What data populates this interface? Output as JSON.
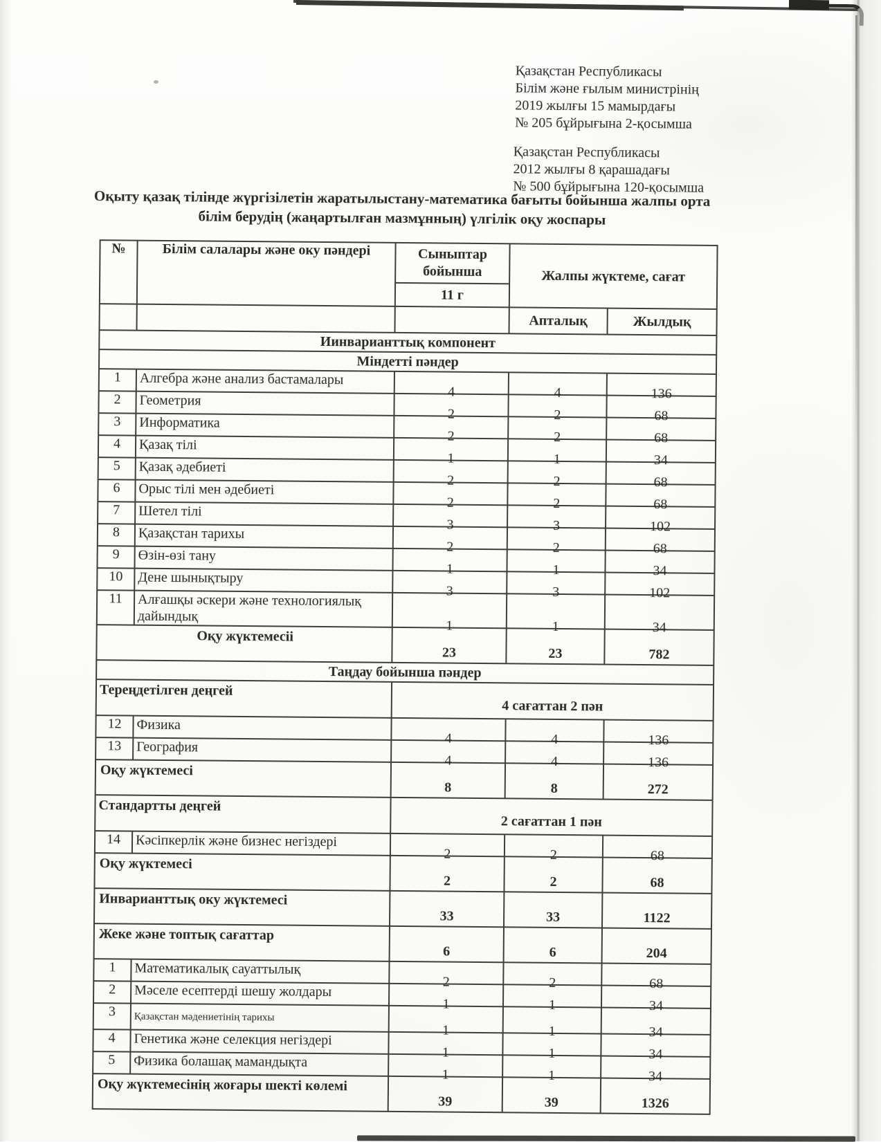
{
  "document": {
    "stamps": [
      {
        "lines": [
          "Қазақстан Республикасы",
          "Білім және ғылым министрінің",
          "2019 жылғы 15 мамырдағы",
          "№ 205 бұйрығына 2-қосымша"
        ]
      },
      {
        "lines": [
          "Қазақстан Республикасы",
          "2012 жылғы 8 қарашадағы",
          "№ 500 бұйрығына 120-қосымша"
        ]
      }
    ],
    "title_line": "Оқыту қазақ тілінде жүргізілетін жаратылыстану-математика бағыты бойынша жалпы орта білім берудің (жаңартылған мазмұнның) үлгілік оқу жоспары"
  },
  "table": {
    "headers": {
      "num": "№",
      "subject": "Білім салалары және оку пәндері",
      "classes": "Сыныптар бойынша",
      "class_label": "11 г",
      "load": "Жалпы жүктеме, сағат",
      "weekly": "Апталық",
      "yearly": "Жылдық"
    },
    "rows": [
      {
        "type": "section",
        "label": "Иинварианттық  компонент"
      },
      {
        "type": "section",
        "label": "Міндетті пәндер"
      },
      {
        "type": "subject",
        "num": "1",
        "label": "Алгебра және анализ бастамалары",
        "hours": "4",
        "weekly": "4",
        "yearly": "136"
      },
      {
        "type": "subject",
        "num": "2",
        "label": "Геометрия",
        "hours": "2",
        "weekly": "2",
        "yearly": "68"
      },
      {
        "type": "subject",
        "num": "3",
        "label": "Информатика",
        "hours": "2",
        "weekly": "2",
        "yearly": "68"
      },
      {
        "type": "subject",
        "num": "4",
        "label": "Қазақ тілі",
        "hours": "1",
        "weekly": "1",
        "yearly": "34"
      },
      {
        "type": "subject",
        "num": "5",
        "label": "Қазақ әдебиеті",
        "hours": "2",
        "weekly": "2",
        "yearly": "68"
      },
      {
        "type": "subject",
        "num": "6",
        "label": "Орыс тілі мен әдебиеті",
        "hours": "2",
        "weekly": "2",
        "yearly": "68"
      },
      {
        "type": "subject",
        "num": "7",
        "label": "Шетел тілі",
        "hours": "3",
        "weekly": "3",
        "yearly": "102"
      },
      {
        "type": "subject",
        "num": "8",
        "label": "Қазақстан тарихы",
        "hours": "2",
        "weekly": "2",
        "yearly": "68"
      },
      {
        "type": "subject",
        "num": "9",
        "label": "Өзін-өзі тану",
        "hours": "1",
        "weekly": "1",
        "yearly": "34"
      },
      {
        "type": "subject",
        "num": "10",
        "label": "Дене шынықтыру",
        "hours": "3",
        "weekly": "3",
        "yearly": "102"
      },
      {
        "type": "subject",
        "num": "11",
        "label": "Алғашқы әскери және технологиялық дайындық",
        "hours": "1",
        "weekly": "1",
        "yearly": "34"
      },
      {
        "type": "summary",
        "center": true,
        "label": "Оқу жүктемесіі",
        "hours": "23",
        "weekly": "23",
        "yearly": "782"
      },
      {
        "type": "section",
        "label": "Таңдау бойынша пәндер"
      },
      {
        "type": "band",
        "label": "Тереңдетілген деңгей",
        "note": "4 сағаттан 2 пән"
      },
      {
        "type": "subject",
        "num": "12",
        "label": "Физика",
        "hours": "4",
        "weekly": "4",
        "yearly": "136"
      },
      {
        "type": "subject",
        "num": "13",
        "label": "География",
        "hours": "4",
        "weekly": "4",
        "yearly": "136"
      },
      {
        "type": "summary",
        "label": "Оқу жүктемесі",
        "hours": "8",
        "weekly": "8",
        "yearly": "272"
      },
      {
        "type": "band",
        "label": "Стандартты деңгей",
        "note": "2 сағаттан 1 пән"
      },
      {
        "type": "subject",
        "num": "14",
        "label": "Кәсіпкерлік және бизнес негіздері",
        "hours": "2",
        "weekly": "2",
        "yearly": "68"
      },
      {
        "type": "summary",
        "label": "Оқу жүктемесі",
        "hours": "2",
        "weekly": "2",
        "yearly": "68"
      },
      {
        "type": "summary",
        "label": "Инварианттық оку жүктемесі",
        "hours": "33",
        "weekly": "33",
        "yearly": "1122"
      },
      {
        "type": "summary",
        "label": "Жеке және топтық сағаттар",
        "hours": "6",
        "weekly": "6",
        "yearly": "204"
      },
      {
        "type": "subject",
        "num": "1",
        "label": "Математикалық сауаттылық",
        "hours": "2",
        "weekly": "2",
        "yearly": "68"
      },
      {
        "type": "subject",
        "num": "2",
        "label": "Мәселе есептерді шешу жолдары",
        "hours": "1",
        "weekly": "1",
        "yearly": "34"
      },
      {
        "type": "subject",
        "num": "3",
        "small": true,
        "label": "Қазақстан мәдениетінің тарихы",
        "hours": "1",
        "weekly": "1",
        "yearly": "34"
      },
      {
        "type": "subject",
        "num": "4",
        "label": "Генетика және селекция негіздері",
        "hours": "1",
        "weekly": "1",
        "yearly": "34"
      },
      {
        "type": "subject",
        "num": "5",
        "label": "Физика болашақ мамандықта",
        "hours": "1",
        "weekly": "1",
        "yearly": "34"
      },
      {
        "type": "summary",
        "label": "Оқу жүктемесінің жоғары шекті көлемі",
        "hours": "39",
        "weekly": "39",
        "yearly": "1326"
      }
    ]
  },
  "colors": {
    "ink": "#2a2a28",
    "table_border": "#3e3e3c",
    "paper": "#fbfbf9"
  }
}
